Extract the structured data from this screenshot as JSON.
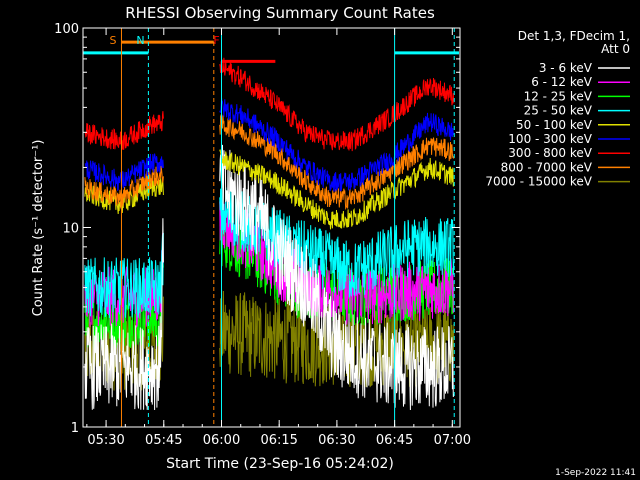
{
  "chart_data": {
    "type": "line",
    "title": "RHESSI Observing Summary Count Rates",
    "xlabel": "Start Time (23-Sep-16 05:24:02)",
    "ylabel": "Count Rate (s⁻¹ detector⁻¹)",
    "ylog": true,
    "ylim": [
      1,
      100
    ],
    "xlim_minutes_after_start": [
      0,
      98
    ],
    "x_ticks": [
      {
        "label": "05:30",
        "t": 6
      },
      {
        "label": "05:45",
        "t": 21
      },
      {
        "label": "06:00",
        "t": 36
      },
      {
        "label": "06:15",
        "t": 51
      },
      {
        "label": "06:30",
        "t": 66
      },
      {
        "label": "06:45",
        "t": 81
      },
      {
        "label": "07:00",
        "t": 96
      }
    ],
    "y_ticks": [
      {
        "label": "1",
        "v": 1
      },
      {
        "label": "10",
        "v": 10
      },
      {
        "label": "100",
        "v": 100
      }
    ],
    "legend_header": [
      "Det 1,3, FDecim 1,",
      "Att 0"
    ],
    "legend_position": "right",
    "timestamp": "1-Sep-2022 11:41",
    "series": [
      {
        "name": "3 - 6 keV",
        "color": "#ffffff",
        "points": [
          [
            0,
            2
          ],
          [
            20,
            2
          ],
          [
            21,
            12
          ],
          [
            36,
            16
          ],
          [
            45,
            12
          ],
          [
            52,
            7
          ],
          [
            58,
            5
          ],
          [
            66,
            2.5
          ],
          [
            80,
            2
          ],
          [
            96,
            2
          ]
        ]
      },
      {
        "name": "6 - 12 keV",
        "color": "#ff00ff",
        "points": [
          [
            0,
            4.5
          ],
          [
            20,
            4.5
          ],
          [
            21,
            8
          ],
          [
            36,
            11
          ],
          [
            45,
            8
          ],
          [
            52,
            6
          ],
          [
            60,
            5
          ],
          [
            70,
            4.5
          ],
          [
            96,
            5
          ]
        ]
      },
      {
        "name": "12 - 25 keV",
        "color": "#00ff00",
        "points": [
          [
            0,
            3.5
          ],
          [
            20,
            3.5
          ],
          [
            21,
            6
          ],
          [
            36,
            9
          ],
          [
            45,
            7
          ],
          [
            55,
            5
          ],
          [
            70,
            4.5
          ],
          [
            96,
            5
          ]
        ]
      },
      {
        "name": "25 - 50 keV",
        "color": "#00ffff",
        "points": [
          [
            0,
            5
          ],
          [
            20,
            5
          ],
          [
            21,
            8
          ],
          [
            36,
            12
          ],
          [
            45,
            10
          ],
          [
            55,
            8
          ],
          [
            70,
            6
          ],
          [
            85,
            8
          ],
          [
            96,
            8
          ]
        ]
      },
      {
        "name": "50 - 100 keV",
        "color": "#e0e000",
        "points": [
          [
            0,
            15
          ],
          [
            10,
            13
          ],
          [
            18,
            16
          ],
          [
            20,
            16
          ],
          [
            36,
            22
          ],
          [
            42,
            20
          ],
          [
            50,
            17
          ],
          [
            58,
            13
          ],
          [
            64,
            11
          ],
          [
            70,
            11
          ],
          [
            80,
            15
          ],
          [
            90,
            20
          ],
          [
            96,
            18
          ]
        ]
      },
      {
        "name": "100 - 300 keV",
        "color": "#0000ff",
        "points": [
          [
            0,
            20
          ],
          [
            10,
            17
          ],
          [
            18,
            21
          ],
          [
            20,
            21
          ],
          [
            36,
            40
          ],
          [
            42,
            36
          ],
          [
            50,
            28
          ],
          [
            58,
            20
          ],
          [
            64,
            17
          ],
          [
            70,
            17
          ],
          [
            80,
            22
          ],
          [
            90,
            34
          ],
          [
            96,
            30
          ]
        ]
      },
      {
        "name": "300 - 800 keV",
        "color": "#ff0000",
        "points": [
          [
            0,
            30
          ],
          [
            10,
            27
          ],
          [
            18,
            33
          ],
          [
            20,
            33
          ],
          [
            36,
            64
          ],
          [
            42,
            55
          ],
          [
            50,
            42
          ],
          [
            58,
            30
          ],
          [
            64,
            27
          ],
          [
            70,
            27
          ],
          [
            80,
            36
          ],
          [
            90,
            52
          ],
          [
            96,
            46
          ]
        ]
      },
      {
        "name": "800 - 7000 keV",
        "color": "#ff8000",
        "points": [
          [
            0,
            16
          ],
          [
            10,
            14
          ],
          [
            18,
            18
          ],
          [
            20,
            18
          ],
          [
            36,
            33
          ],
          [
            42,
            30
          ],
          [
            50,
            24
          ],
          [
            58,
            17
          ],
          [
            64,
            14
          ],
          [
            70,
            14
          ],
          [
            80,
            19
          ],
          [
            90,
            26
          ],
          [
            96,
            24
          ]
        ]
      },
      {
        "name": "7000 - 15000 keV",
        "color": "#808000",
        "points": [
          [
            0,
            2.5
          ],
          [
            20,
            2.5
          ],
          [
            21,
            3
          ],
          [
            36,
            3
          ],
          [
            60,
            2.6
          ],
          [
            96,
            2.6
          ]
        ]
      }
    ],
    "annotations": [
      {
        "label": "S",
        "color": "#ff8000",
        "t": 10
      },
      {
        "label": "N",
        "color": "#00ffff",
        "t": 17
      },
      {
        "label": "F",
        "color": "#ff0000",
        "t": 37
      }
    ]
  },
  "ui": {
    "colors": {
      "background": "#000000",
      "foreground": "#ffffff",
      "saa": "#00ffff",
      "night": "#ff8000",
      "flare": "#ff0000"
    }
  }
}
